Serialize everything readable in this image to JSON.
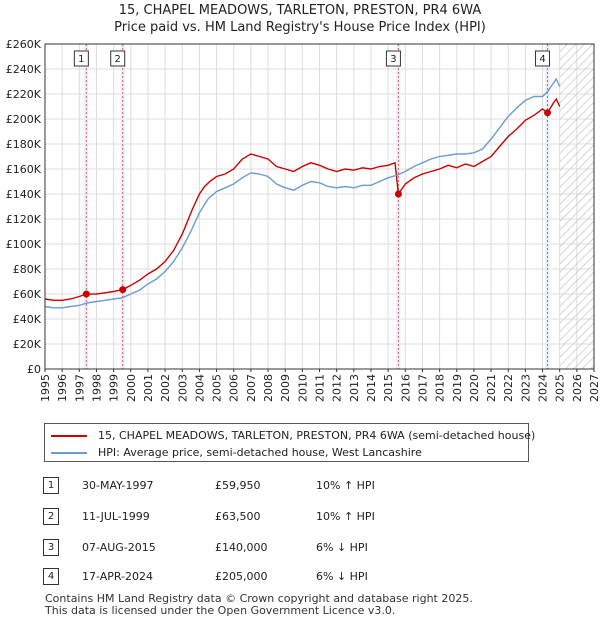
{
  "title_line1": "15, CHAPEL MEADOWS, TARLETON, PRESTON, PR4 6WA",
  "title_line2": "Price paid vs. HM Land Registry's House Price Index (HPI)",
  "colors": {
    "property": "#cc0000",
    "hpi": "#6b9bd2",
    "grid": "#dddddd",
    "marker_line": "#e06060"
  },
  "legend": {
    "property": "15, CHAPEL MEADOWS, TARLETON, PRESTON, PR4 6WA (semi-detached house)",
    "hpi": "HPI: Average price, semi-detached house, West Lancashire"
  },
  "transactions": [
    {
      "num": "1",
      "date": "30-MAY-1997",
      "price": "£59,950",
      "hpi": "10% ↑ HPI"
    },
    {
      "num": "2",
      "date": "11-JUL-1999",
      "price": "£63,500",
      "hpi": "10% ↑ HPI"
    },
    {
      "num": "3",
      "date": "07-AUG-2015",
      "price": "£140,000",
      "hpi": "6% ↓ HPI"
    },
    {
      "num": "4",
      "date": "17-APR-2024",
      "price": "£205,000",
      "hpi": "6% ↓ HPI"
    }
  ],
  "footer_line1": "Contains HM Land Registry data © Crown copyright and database right 2025.",
  "footer_line2": "This data is licensed under the Open Government Licence v3.0.",
  "chart_data": {
    "type": "line",
    "xlim": [
      1995,
      2027
    ],
    "ylim": [
      0,
      260000
    ],
    "x_ticks": [
      1995,
      1996,
      1997,
      1998,
      1999,
      2000,
      2001,
      2002,
      2003,
      2004,
      2005,
      2006,
      2007,
      2008,
      2009,
      2010,
      2011,
      2012,
      2013,
      2014,
      2015,
      2016,
      2017,
      2018,
      2019,
      2020,
      2021,
      2022,
      2023,
      2024,
      2025,
      2026,
      2027
    ],
    "y_ticks": [
      0,
      20000,
      40000,
      60000,
      80000,
      100000,
      120000,
      140000,
      160000,
      180000,
      200000,
      220000,
      240000,
      260000
    ],
    "y_tick_labels": [
      "£0",
      "£20K",
      "£40K",
      "£60K",
      "£80K",
      "£100K",
      "£120K",
      "£140K",
      "£160K",
      "£180K",
      "£200K",
      "£220K",
      "£240K",
      "£260K"
    ],
    "data_end": 2025.0,
    "sales": [
      {
        "label": "1",
        "x": 1997.41,
        "y": 59950
      },
      {
        "label": "2",
        "x": 1999.53,
        "y": 63500
      },
      {
        "label": "3",
        "x": 2015.6,
        "y": 140000
      },
      {
        "label": "4",
        "x": 2024.29,
        "y": 205000
      }
    ],
    "series": [
      {
        "name": "15, CHAPEL MEADOWS, TARLETON, PRESTON, PR4 6WA (semi-detached house)",
        "x": [
          1995.0,
          1995.5,
          1996.0,
          1996.5,
          1997.0,
          1997.41,
          1998.0,
          1998.5,
          1999.0,
          1999.53,
          2000.0,
          2000.5,
          2001.0,
          2001.5,
          2002.0,
          2002.5,
          2003.0,
          2003.3,
          2003.6,
          2004.0,
          2004.3,
          2004.6,
          2005.0,
          2005.5,
          2006.0,
          2006.5,
          2007.0,
          2007.5,
          2008.0,
          2008.5,
          2009.0,
          2009.5,
          2010.0,
          2010.5,
          2011.0,
          2011.5,
          2012.0,
          2012.5,
          2013.0,
          2013.5,
          2014.0,
          2014.5,
          2015.0,
          2015.4,
          2015.6,
          2016.0,
          2016.5,
          2017.0,
          2017.5,
          2018.0,
          2018.5,
          2019.0,
          2019.5,
          2020.0,
          2020.5,
          2021.0,
          2021.5,
          2022.0,
          2022.5,
          2023.0,
          2023.5,
          2024.0,
          2024.29,
          2024.6,
          2024.8,
          2025.0
        ],
        "y": [
          56000,
          55000,
          55000,
          56000,
          58000,
          59950,
          60000,
          61000,
          62000,
          63500,
          67000,
          71000,
          76000,
          80000,
          86000,
          95000,
          108000,
          118000,
          128000,
          140000,
          146000,
          150000,
          154000,
          156000,
          160000,
          168000,
          172000,
          170000,
          168000,
          162000,
          160000,
          158000,
          162000,
          165000,
          163000,
          160000,
          158000,
          160000,
          159000,
          161000,
          160000,
          162000,
          163000,
          165000,
          140000,
          148000,
          153000,
          156000,
          158000,
          160000,
          163000,
          161000,
          164000,
          162000,
          166000,
          170000,
          178000,
          186000,
          192000,
          199000,
          203000,
          208000,
          205000,
          212000,
          216000,
          210000
        ]
      },
      {
        "name": "HPI: Average price, semi-detached house, West Lancashire",
        "x": [
          1995.0,
          1995.5,
          1996.0,
          1996.5,
          1997.0,
          1997.5,
          1998.0,
          1998.5,
          1999.0,
          1999.5,
          2000.0,
          2000.5,
          2001.0,
          2001.5,
          2002.0,
          2002.5,
          2003.0,
          2003.5,
          2004.0,
          2004.5,
          2005.0,
          2005.5,
          2006.0,
          2006.5,
          2007.0,
          2007.5,
          2008.0,
          2008.5,
          2009.0,
          2009.5,
          2010.0,
          2010.5,
          2011.0,
          2011.5,
          2012.0,
          2012.5,
          2013.0,
          2013.5,
          2014.0,
          2014.5,
          2015.0,
          2015.5,
          2016.0,
          2016.5,
          2017.0,
          2017.5,
          2018.0,
          2018.5,
          2019.0,
          2019.5,
          2020.0,
          2020.5,
          2021.0,
          2021.5,
          2022.0,
          2022.5,
          2023.0,
          2023.5,
          2024.0,
          2024.3,
          2024.6,
          2024.8,
          2025.0
        ],
        "y": [
          50000,
          49000,
          49000,
          50000,
          51000,
          53000,
          54000,
          55000,
          56000,
          57000,
          60000,
          63000,
          68000,
          72000,
          78000,
          86000,
          97000,
          110000,
          125000,
          136000,
          142000,
          145000,
          148000,
          153000,
          157000,
          156000,
          154000,
          148000,
          145000,
          143000,
          147000,
          150000,
          149000,
          146000,
          145000,
          146000,
          145000,
          147000,
          147000,
          150000,
          153000,
          155000,
          158000,
          162000,
          165000,
          168000,
          170000,
          171000,
          172000,
          172000,
          173000,
          176000,
          184000,
          193000,
          202000,
          209000,
          215000,
          218000,
          218000,
          222000,
          228000,
          232000,
          226000
        ]
      }
    ]
  }
}
